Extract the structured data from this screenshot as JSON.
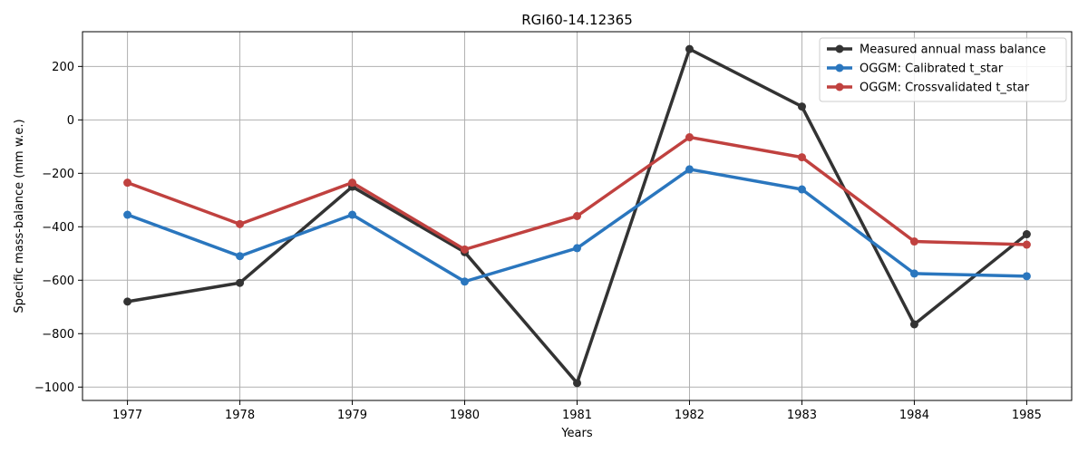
{
  "chart_data": {
    "type": "line",
    "title": "RGI60-14.12365",
    "xlabel": "Years",
    "ylabel": "Specific mass-balance (mm w.e.)",
    "x": [
      1977,
      1978,
      1979,
      1980,
      1981,
      1982,
      1983,
      1984,
      1985
    ],
    "xlim": [
      1976.6,
      1985.4
    ],
    "ylim": [
      -1050,
      330
    ],
    "yticks": [
      -1000,
      -800,
      -600,
      -400,
      -200,
      0,
      200
    ],
    "grid": true,
    "legend_position": "top-right",
    "series": [
      {
        "name": "Measured annual mass balance",
        "color": "#333333",
        "values": [
          -680,
          -610,
          -250,
          -495,
          -985,
          265,
          50,
          -765,
          -428
        ]
      },
      {
        "name": "OGGM: Calibrated t_star",
        "color": "#2a76be",
        "values": [
          -355,
          -510,
          -355,
          -605,
          -480,
          -185,
          -260,
          -575,
          -585
        ]
      },
      {
        "name": "OGGM: Crossvalidated t_star",
        "color": "#c0413f",
        "values": [
          -235,
          -390,
          -235,
          -485,
          -360,
          -65,
          -140,
          -455,
          -467
        ]
      }
    ]
  }
}
